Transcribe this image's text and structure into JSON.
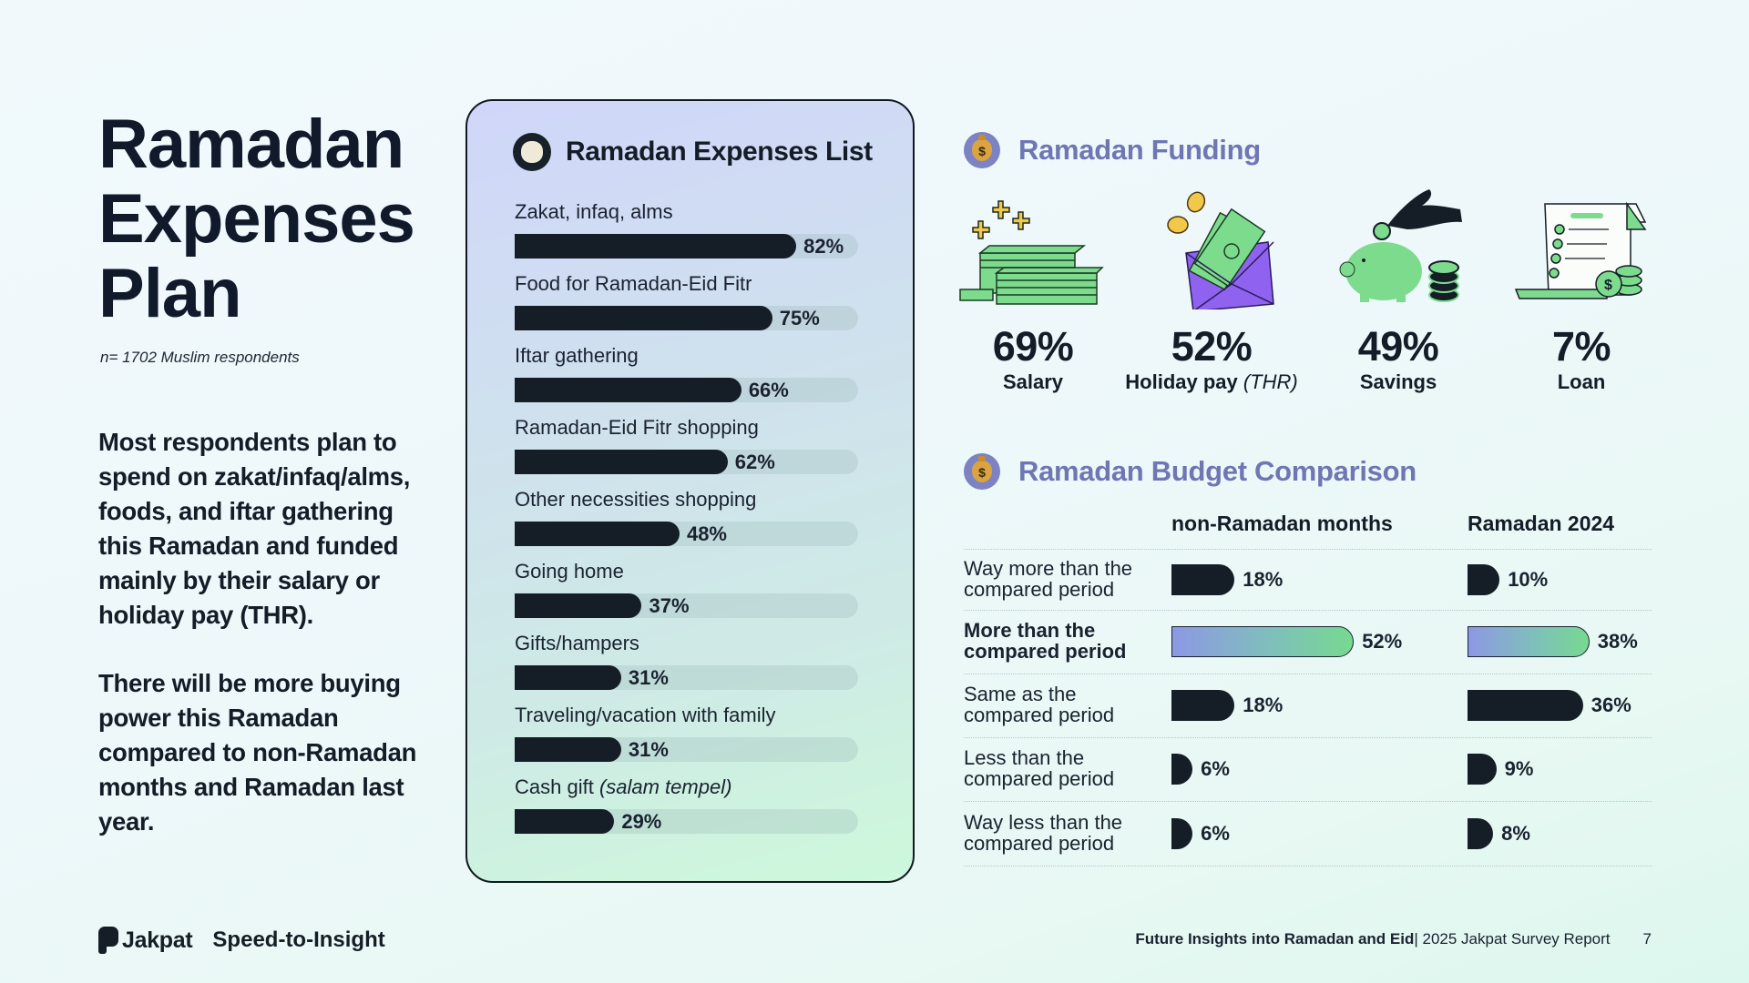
{
  "page": {
    "title_lines": [
      "Ramadan",
      "Expenses",
      "Plan"
    ],
    "sample_note": "n= 1702 Muslim respondents",
    "summary_1": "Most respondents plan to spend on zakat/infaq/alms, foods, and iftar gathering this Ramadan and funded mainly by their salary or holiday pay (THR).",
    "summary_2": "There will be more buying power this Ramadan compared to non-Ramadan months and Ramadan last year."
  },
  "expenses_card": {
    "title": "Ramadan Expenses List",
    "icon": "flower-icon",
    "items": [
      {
        "label": "Zakat, infaq, alms",
        "label_italic": "",
        "value": 82,
        "display": "82%"
      },
      {
        "label": "Food for Ramadan-Eid Fitr",
        "label_italic": "",
        "value": 75,
        "display": "75%"
      },
      {
        "label": "Iftar gathering",
        "label_italic": "",
        "value": 66,
        "display": "66%"
      },
      {
        "label": "Ramadan-Eid Fitr shopping",
        "label_italic": "",
        "value": 62,
        "display": "62%"
      },
      {
        "label": "Other necessities shopping",
        "label_italic": "",
        "value": 48,
        "display": "48%"
      },
      {
        "label": "Going home",
        "label_italic": "",
        "value": 37,
        "display": "37%"
      },
      {
        "label": "Gifts/hampers",
        "label_italic": "",
        "value": 31,
        "display": "31%"
      },
      {
        "label": "Traveling/vacation with family",
        "label_italic": "",
        "value": 31,
        "display": "31%"
      },
      {
        "label": "Cash gift ",
        "label_italic": "(salam tempel)",
        "value": 29,
        "display": "29%"
      }
    ]
  },
  "funding": {
    "title": "Ramadan Funding",
    "icon": "money-bag-icon",
    "items": [
      {
        "value": "69%",
        "label": "Salary",
        "label_italic": "",
        "illustration": "cash-stack-illustration"
      },
      {
        "value": "52%",
        "label": "Holiday pay ",
        "label_italic": "(THR)",
        "illustration": "envelope-cash-illustration"
      },
      {
        "value": "49%",
        "label": "Savings",
        "label_italic": "",
        "illustration": "piggy-bank-illustration"
      },
      {
        "value": "7%",
        "label": "Loan",
        "label_italic": "",
        "illustration": "loan-receipt-illustration"
      }
    ]
  },
  "budget": {
    "title": "Ramadan Budget Comparison",
    "icon": "money-bag-icon",
    "columns": [
      "non-Ramadan months",
      "Ramadan 2024"
    ],
    "rows": [
      {
        "label_1": "Way more than the",
        "label_2": "compared period",
        "bold": false,
        "values": [
          18,
          10
        ],
        "display": [
          "18%",
          "10%"
        ],
        "highlight": false
      },
      {
        "label_1": "More than the",
        "label_2": "compared period",
        "bold": true,
        "values": [
          52,
          38
        ],
        "display": [
          "52%",
          "38%"
        ],
        "highlight": true
      },
      {
        "label_1": "Same as the",
        "label_2": "compared period",
        "bold": false,
        "values": [
          18,
          36
        ],
        "display": [
          "18%",
          "36%"
        ],
        "highlight": false
      },
      {
        "label_1": "Less than the",
        "label_2": "compared period",
        "bold": false,
        "values": [
          6,
          9
        ],
        "display": [
          "6%",
          "9%"
        ],
        "highlight": false
      },
      {
        "label_1": "Way less than the",
        "label_2": "compared period",
        "bold": false,
        "values": [
          6,
          8
        ],
        "display": [
          "6%",
          "8%"
        ],
        "highlight": false
      }
    ]
  },
  "colors": {
    "ink": "#151d27",
    "accent_purple": "#6f76b4",
    "highlight_start": "#8d98e4",
    "highlight_end": "#77d98f"
  },
  "footer": {
    "logo": "Jakpat",
    "tagline": "Speed-to-Insight",
    "report_bold": "Future Insights into Ramadan and Eid",
    "report_rest": " | 2025 Jakpat Survey Report",
    "page_number": "7"
  }
}
